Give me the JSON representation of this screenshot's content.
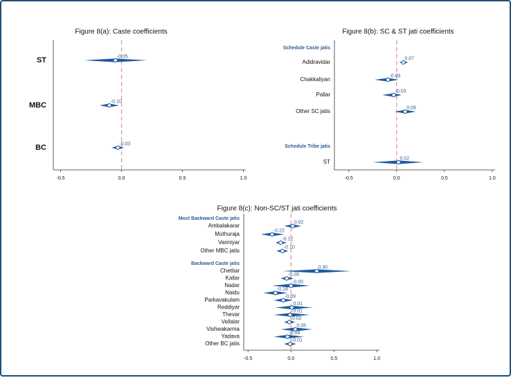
{
  "chart_data": [
    {
      "type": "dot",
      "title": "Figure 8(a): Caste coefficients",
      "categories": [
        "ST",
        "MBC",
        "BC"
      ],
      "values": [
        -0.05,
        -0.1,
        -0.03
      ],
      "value_labels": [
        "-0.05",
        "-0.10",
        "-0.03"
      ],
      "lower": [
        -0.31,
        -0.18,
        -0.08
      ],
      "upper": [
        0.21,
        -0.02,
        0.02
      ],
      "xlim": [
        -0.56,
        1.02
      ],
      "xticks": [
        -0.5,
        {
          "value": 0,
          "label": "0.0"
        },
        0.5,
        {
          "value": 1,
          "label": "1.0"
        }
      ],
      "vline": 0,
      "color": "#1f5a9e"
    },
    {
      "type": "dot",
      "title": "Figure 8(b): SC & ST jati coefficients",
      "groups": [
        {
          "name": "Schedule Caste jatis",
          "categories": [
            "Adidravidar",
            "Chakkaliyan",
            "Pallar",
            "Other SC jatis"
          ],
          "values": [
            0.07,
            -0.09,
            -0.03,
            0.09
          ],
          "value_labels": [
            "0.07",
            "-0.09",
            "-0.03",
            "0.09"
          ],
          "lower": [
            0.03,
            -0.23,
            -0.15,
            -0.02
          ],
          "upper": [
            0.12,
            0.02,
            0.05,
            0.2
          ]
        },
        {
          "name": "Schedule Tribe jatis",
          "categories": [
            "ST"
          ],
          "values": [
            0.02
          ],
          "value_labels": [
            "0.02"
          ],
          "lower": [
            -0.25
          ],
          "upper": [
            0.28
          ]
        }
      ],
      "xlim": [
        -0.65,
        1.03
      ],
      "xticks": [
        -0.5,
        {
          "value": 0,
          "label": "0.0"
        },
        0.5,
        {
          "value": 1,
          "label": "1.0"
        }
      ],
      "vline": 0,
      "color": "#1f5a9e"
    },
    {
      "type": "dot",
      "title": "Figure 8(c): Non-SC/ST jati coefficients",
      "groups": [
        {
          "name": "Most Backward Caste jatis",
          "categories": [
            "Ambalakarar",
            "Muthuraja",
            "Vanniyar",
            "Other MBC jatis"
          ],
          "values": [
            0.02,
            -0.22,
            -0.12,
            -0.1
          ],
          "value_labels": [
            "0.02",
            "-0.22",
            "-0.12",
            "-0.10"
          ],
          "lower": [
            -0.08,
            -0.35,
            -0.18,
            -0.17
          ],
          "upper": [
            0.12,
            -0.08,
            -0.05,
            -0.03
          ]
        },
        {
          "name": "Backward Caste jatis",
          "categories": [
            "Chettiar",
            "Kallar",
            "Nadar",
            "Naidu",
            "Parkavakulam",
            "Reddiyar",
            "Thevar",
            "Vellalar",
            "Vishwakarma",
            "Yadava",
            "Other BC jatis"
          ],
          "values": [
            0.3,
            -0.05,
            0,
            -0.18,
            -0.09,
            0.01,
            -0.01,
            -0.02,
            0.05,
            -0.04,
            -0.01
          ],
          "value_labels": [
            "0.30",
            "-0.05",
            "-0.00",
            "-0.18",
            "-0.09",
            "0.01",
            "-0.01",
            "-0.02",
            "0.05",
            "-0.04",
            "-0.01"
          ],
          "lower": [
            -0.1,
            -0.12,
            -0.22,
            -0.32,
            -0.2,
            -0.18,
            -0.2,
            -0.08,
            -0.12,
            -0.2,
            -0.08
          ],
          "upper": [
            0.7,
            0.03,
            0.22,
            -0.04,
            0.02,
            0.25,
            0.22,
            0.05,
            0.25,
            0.15,
            0.06
          ]
        }
      ],
      "xlim": [
        -0.55,
        1.03
      ],
      "xticks": [
        -0.5,
        {
          "value": 0,
          "label": "0.0"
        },
        0.5,
        {
          "value": 1,
          "label": "1.0"
        }
      ],
      "vline": 0,
      "color": "#1f5a9e"
    }
  ]
}
